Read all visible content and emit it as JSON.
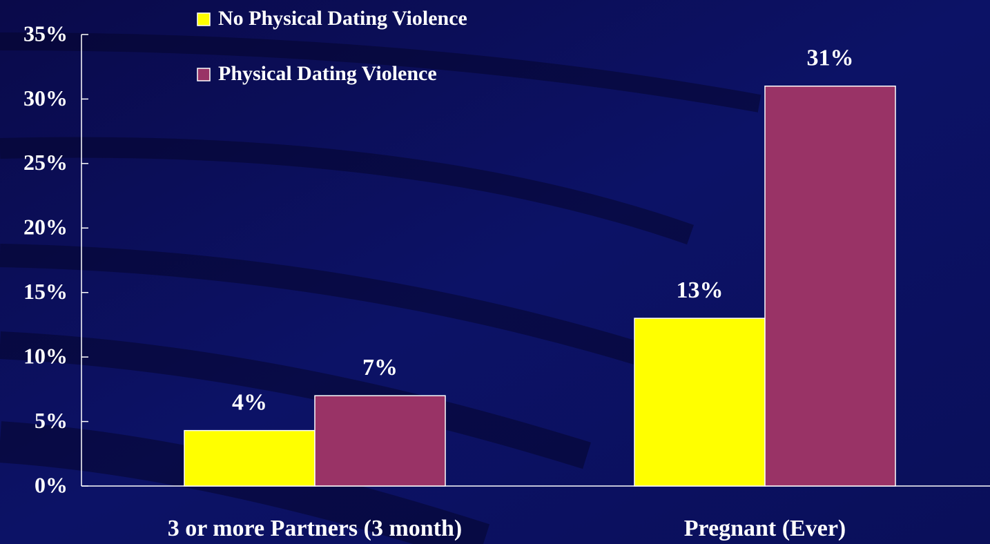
{
  "chart_data": {
    "type": "bar",
    "categories": [
      "3 or more Partners (3 month)",
      "Pregnant (Ever)"
    ],
    "series": [
      {
        "name": "No Physical Dating Violence",
        "color": "#ffff00",
        "values": [
          4.3,
          13
        ],
        "value_labels": [
          "4%",
          "13%"
        ]
      },
      {
        "name": "Physical Dating Violence",
        "color": "#993366",
        "values": [
          7,
          31
        ],
        "value_labels": [
          "7%",
          "31%"
        ]
      }
    ],
    "ylim": [
      0,
      35
    ],
    "yticks": [
      {
        "value": 0,
        "label": "0%"
      },
      {
        "value": 5,
        "label": "5%"
      },
      {
        "value": 10,
        "label": "10%"
      },
      {
        "value": 15,
        "label": "15%"
      },
      {
        "value": 20,
        "label": "20%"
      },
      {
        "value": 25,
        "label": "25%"
      },
      {
        "value": 30,
        "label": "30%"
      },
      {
        "value": 35,
        "label": "35%"
      }
    ],
    "grid": false,
    "legend": "top"
  }
}
